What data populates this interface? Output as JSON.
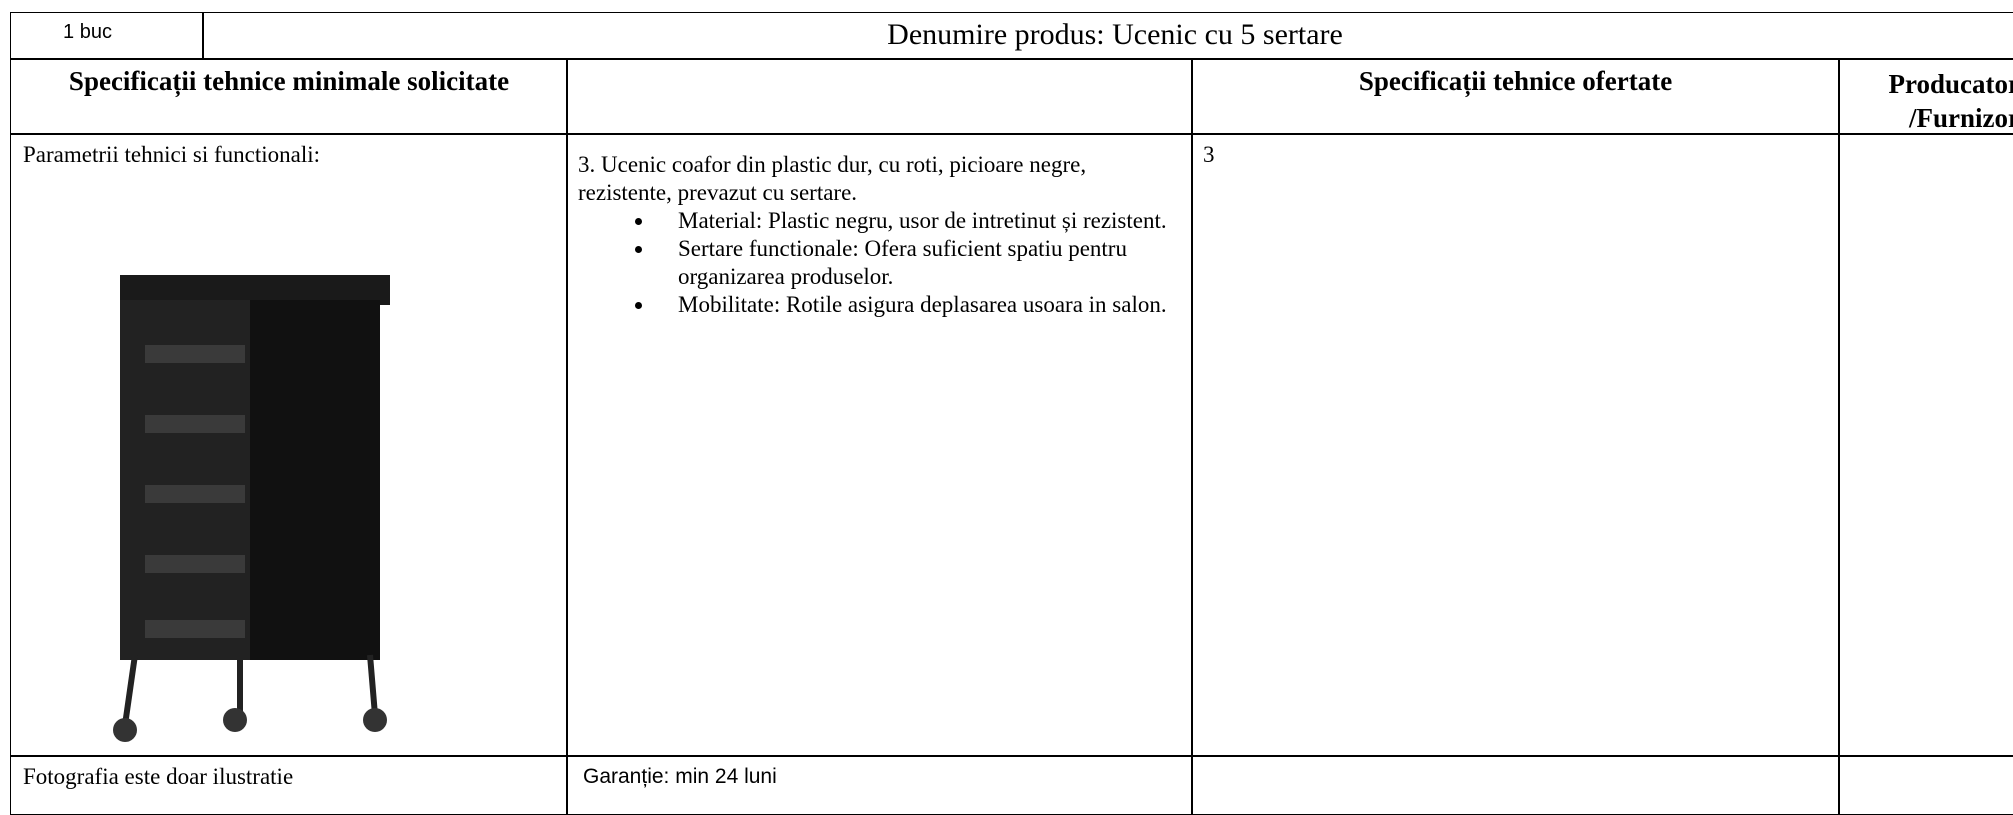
{
  "header": {
    "quantity": "1 buc",
    "title": "Denumire produs: Ucenic cu 5 sertare"
  },
  "table": {
    "headers": {
      "min_specs": "Specificații tehnice minimale solicitate",
      "offered_specs": "Specificații tehnice ofertate",
      "producer": "Producator /Furnizor"
    },
    "body": {
      "params_label": "Parametrii tehnici si functionali:",
      "description": "3. Ucenic coafor din plastic dur, cu roti, picioare negre, rezistente, prevazut cu sertare.",
      "bullets": [
        "Material: Plastic negru, usor de intretinut și rezistent.",
        "Sertare functionale: Ofera suficient spatiu pentru organizarea produselor.",
        "Mobilitate: Rotile asigura deplasarea usoara in salon."
      ],
      "offered": "3"
    },
    "footer": {
      "photo_note": "Fotografia este doar ilustratie",
      "warranty": "Garanție: min 24 luni"
    }
  }
}
